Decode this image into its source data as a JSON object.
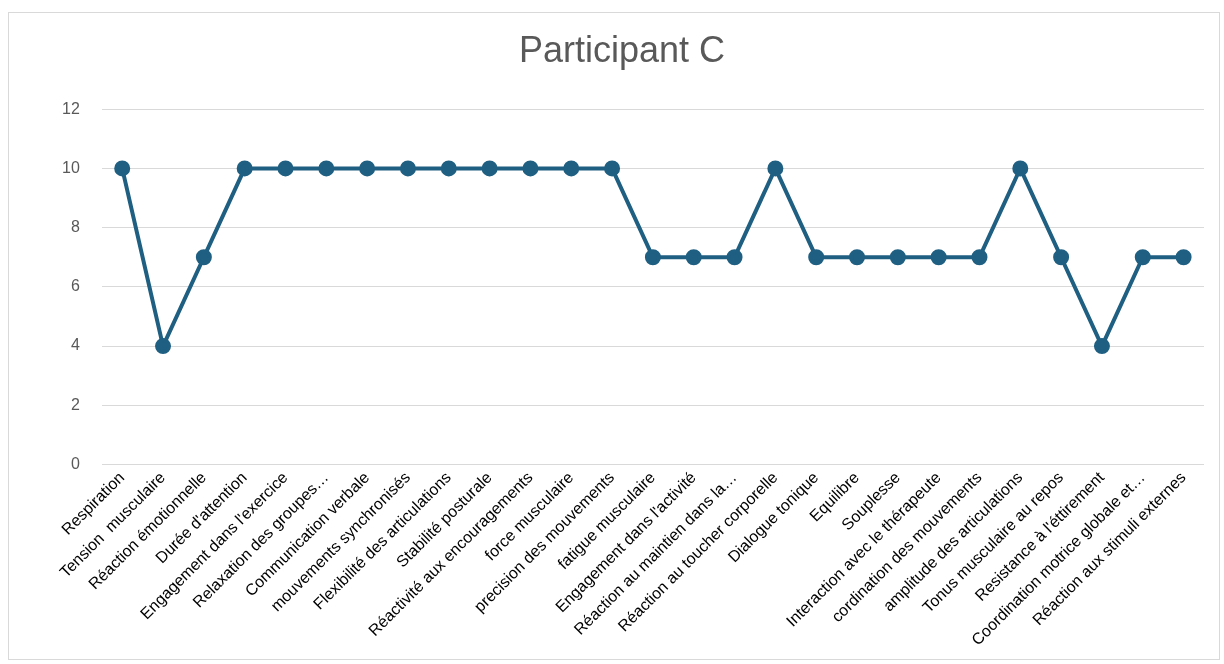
{
  "chart_data": {
    "type": "line",
    "title": "Participant C",
    "categories": [
      "Respiration",
      "Tension  musculaire",
      "Réaction émotionnelle",
      "Durée d'attention",
      "Engagement dans l'exercice",
      "Relaxation des groupes…",
      "Communication verbale",
      "mouvements synchronisés",
      "Flexibilité des articulations",
      "Stabilité posturale",
      "Réactivité aux encouragements",
      "force musculaire",
      "precision des mouvements",
      "fatigue musculaire",
      "Engagement dans l'activité",
      "Réaction au maintien dans la…",
      "Réaction au toucher corporelle",
      "Dialogue tonique",
      "Equilibre",
      "Souplesse",
      "Interaction avec le thérapeute",
      "cordination des mouvements",
      "amplitude des articulations",
      "Tonus musculaire au repos",
      "Resistance à l'éttirement",
      "Coordination motrice globale et…",
      "Réaction aux stimuli externes"
    ],
    "values": [
      10,
      4,
      7,
      10,
      10,
      10,
      10,
      10,
      10,
      10,
      10,
      10,
      10,
      7,
      7,
      7,
      10,
      7,
      7,
      7,
      7,
      7,
      10,
      7,
      4,
      7,
      7
    ],
    "color": "#1f5f82",
    "ylim": [
      0,
      12
    ],
    "yticks": [
      0,
      2,
      4,
      6,
      8,
      10,
      12
    ],
    "grid": "y",
    "marker": "circle",
    "line_style": "solid",
    "legend": false
  }
}
